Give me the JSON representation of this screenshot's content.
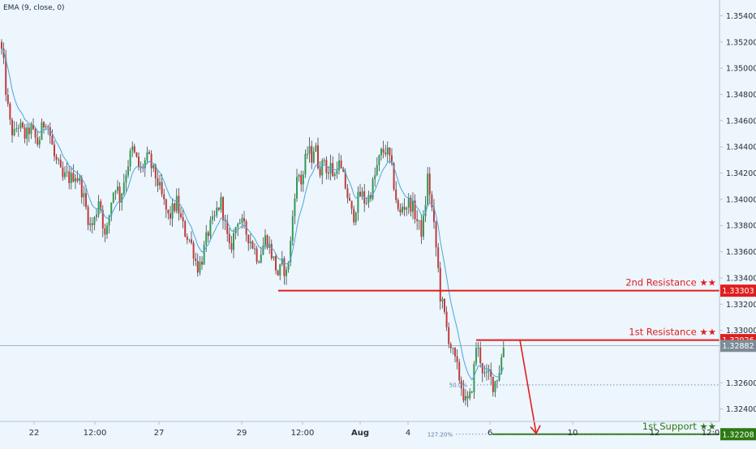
{
  "indicator_label": "EMA (9, close, 0)",
  "colors": {
    "background": "#edf5fd",
    "up": "#2f9c54",
    "down": "#c23a3a",
    "wick": "#2b2b2b",
    "ema": "#4aa8d6",
    "resistance": "#e01e1e",
    "support": "#2b7a12",
    "current": "#7d8c96",
    "axis_text": "#2a2f36"
  },
  "chart_data": {
    "type": "candlestick",
    "y_axis": {
      "range": [
        1.3212,
        1.3552
      ],
      "ticks": [
        "1.35400",
        "1.35200",
        "1.35000",
        "1.34800",
        "1.34600",
        "1.34400",
        "1.34200",
        "1.34000",
        "1.33800",
        "1.33600",
        "1.33400",
        "1.33200",
        "1.33000",
        "1.32600",
        "1.32400"
      ],
      "tick_values": [
        1.354,
        1.352,
        1.35,
        1.348,
        1.346,
        1.344,
        1.342,
        1.34,
        1.338,
        1.336,
        1.334,
        1.332,
        1.33,
        1.326,
        1.324
      ]
    },
    "x_axis": {
      "ticks": [
        "22",
        "12:00",
        "27",
        "29",
        "12:00",
        "Aug",
        "4",
        "6",
        "10",
        "12",
        "12:0"
      ]
    },
    "price_path": [
      [
        0,
        1.352
      ],
      [
        4,
        1.3506
      ],
      [
        8,
        1.3478
      ],
      [
        12,
        1.3458
      ],
      [
        17,
        1.3448
      ],
      [
        22,
        1.3458
      ],
      [
        27,
        1.3452
      ],
      [
        32,
        1.3447
      ],
      [
        37,
        1.3455
      ],
      [
        42,
        1.3448
      ],
      [
        47,
        1.3442
      ],
      [
        52,
        1.3455
      ],
      [
        57,
        1.3462
      ],
      [
        62,
        1.3448
      ],
      [
        67,
        1.3432
      ],
      [
        72,
        1.3425
      ],
      [
        77,
        1.3415
      ],
      [
        82,
        1.3418
      ],
      [
        87,
        1.3415
      ],
      [
        92,
        1.342
      ],
      [
        97,
        1.3415
      ],
      [
        102,
        1.3405
      ],
      [
        107,
        1.339
      ],
      [
        112,
        1.3378
      ],
      [
        117,
        1.3385
      ],
      [
        122,
        1.3402
      ],
      [
        126,
        1.3386
      ],
      [
        130,
        1.3368
      ],
      [
        134,
        1.3385
      ],
      [
        138,
        1.3403
      ],
      [
        143,
        1.3412
      ],
      [
        148,
        1.34
      ],
      [
        153,
        1.3415
      ],
      [
        158,
        1.3428
      ],
      [
        163,
        1.3438
      ],
      [
        168,
        1.343
      ],
      [
        173,
        1.3421
      ],
      [
        178,
        1.3428
      ],
      [
        183,
        1.3432
      ],
      [
        188,
        1.3422
      ],
      [
        193,
        1.3416
      ],
      [
        198,
        1.3405
      ],
      [
        203,
        1.3395
      ],
      [
        208,
        1.3385
      ],
      [
        213,
        1.3392
      ],
      [
        218,
        1.3398
      ],
      [
        223,
        1.3384
      ],
      [
        228,
        1.3375
      ],
      [
        233,
        1.337
      ],
      [
        238,
        1.3362
      ],
      [
        243,
        1.3348
      ],
      [
        248,
        1.3352
      ],
      [
        253,
        1.3366
      ],
      [
        258,
        1.3378
      ],
      [
        263,
        1.3382
      ],
      [
        268,
        1.3393
      ],
      [
        273,
        1.3398
      ],
      [
        278,
        1.3378
      ],
      [
        283,
        1.336
      ],
      [
        288,
        1.3372
      ],
      [
        293,
        1.3386
      ],
      [
        298,
        1.3381
      ],
      [
        303,
        1.3375
      ],
      [
        308,
        1.337
      ],
      [
        313,
        1.3363
      ],
      [
        318,
        1.3355
      ],
      [
        323,
        1.3362
      ],
      [
        328,
        1.3372
      ],
      [
        333,
        1.3362
      ],
      [
        338,
        1.3352
      ],
      [
        343,
        1.3342
      ],
      [
        348,
        1.335
      ],
      [
        353,
        1.3343
      ],
      [
        358,
        1.3365
      ],
      [
        363,
        1.3405
      ],
      [
        368,
        1.342
      ],
      [
        372,
        1.3412
      ],
      [
        376,
        1.3428
      ],
      [
        380,
        1.3438
      ],
      [
        384,
        1.3432
      ],
      [
        388,
        1.3442
      ],
      [
        392,
        1.3428
      ],
      [
        396,
        1.3422
      ],
      [
        400,
        1.3432
      ],
      [
        404,
        1.3418
      ],
      [
        408,
        1.3426
      ],
      [
        412,
        1.3415
      ],
      [
        416,
        1.343
      ],
      [
        420,
        1.3422
      ],
      [
        425,
        1.3412
      ],
      [
        430,
        1.3398
      ],
      [
        435,
        1.3385
      ],
      [
        440,
        1.3398
      ],
      [
        445,
        1.3405
      ],
      [
        450,
        1.3398
      ],
      [
        455,
        1.3402
      ],
      [
        460,
        1.3412
      ],
      [
        465,
        1.3425
      ],
      [
        470,
        1.3435
      ],
      [
        475,
        1.3438
      ],
      [
        480,
        1.3432
      ],
      [
        484,
        1.3418
      ],
      [
        488,
        1.3402
      ],
      [
        492,
        1.3385
      ],
      [
        496,
        1.3395
      ],
      [
        500,
        1.3395
      ],
      [
        505,
        1.3398
      ],
      [
        510,
        1.3392
      ],
      [
        515,
        1.3382
      ],
      [
        519,
        1.3375
      ],
      [
        523,
        1.3385
      ],
      [
        527,
        1.3418
      ],
      [
        531,
        1.34
      ],
      [
        535,
        1.3378
      ],
      [
        539,
        1.3355
      ],
      [
        543,
        1.3325
      ],
      [
        547,
        1.3315
      ],
      [
        551,
        1.33
      ],
      [
        555,
        1.329
      ],
      [
        559,
        1.328
      ],
      [
        563,
        1.3272
      ],
      [
        567,
        1.3262
      ],
      [
        571,
        1.3252
      ],
      [
        575,
        1.3243
      ],
      [
        579,
        1.3248
      ],
      [
        583,
        1.3262
      ],
      [
        587,
        1.3288
      ],
      [
        591,
        1.3282
      ],
      [
        595,
        1.327
      ],
      [
        599,
        1.3262
      ],
      [
        603,
        1.3268
      ],
      [
        607,
        1.3258
      ],
      [
        611,
        1.3262
      ],
      [
        615,
        1.3268
      ],
      [
        619,
        1.3282
      ],
      [
        622,
        1.3292
      ]
    ],
    "levels": [
      {
        "name": "2nd Resistance ★★",
        "value": 1.33303,
        "label": "1.33303",
        "color": "#e01e1e"
      },
      {
        "name": "1st Resistance ★★",
        "value": 1.32926,
        "label": "1.32926",
        "color": "#e01e1e"
      },
      {
        "name": "1st Support ★★",
        "value": 1.32208,
        "label": "1.32208",
        "color": "#2b7a12"
      }
    ],
    "current_price": {
      "value": 1.32882,
      "label": "1.32882"
    },
    "fib_levels": [
      {
        "label": "50.0%",
        "value": 1.32584
      },
      {
        "label": "127.20%",
        "value": 1.32208
      }
    ],
    "projection_arrow": {
      "from": 1.32926,
      "to": 1.32208
    }
  }
}
